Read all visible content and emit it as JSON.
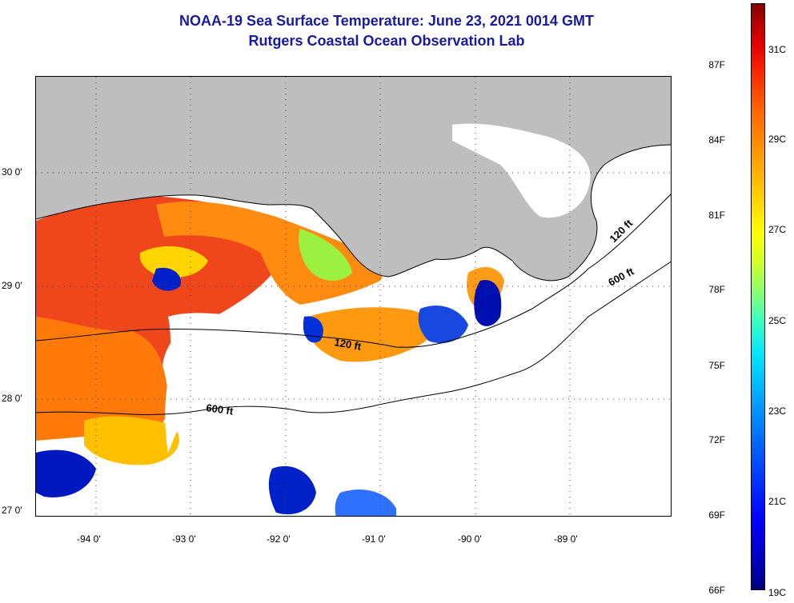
{
  "title": {
    "line1": "NOAA-19 Sea Surface Temperature:  June 23, 2021 0014 GMT",
    "line2": "Rutgers Coastal Ocean Observation Lab"
  },
  "latitude_labels": [
    "30 0'",
    "29 0'",
    "28 0'",
    "27 0'"
  ],
  "longitude_labels": [
    "-94 0'",
    "-93 0'",
    "-92 0'",
    "-91 0'",
    "-90 0'",
    "-89 0'"
  ],
  "contour_labels": [
    "120 ft",
    "600 ft",
    "120 ft",
    "600 ft"
  ],
  "colorbar": {
    "fahrenheit": [
      "87F",
      "84F",
      "81F",
      "78F",
      "75F",
      "72F",
      "69F",
      "66F"
    ],
    "celsius": [
      "31C",
      "29C",
      "27C",
      "25C",
      "23C",
      "21C",
      "19C"
    ],
    "colors": [
      "#00007f",
      "#0000ff",
      "#00a0ff",
      "#00e5ff",
      "#8cff6e",
      "#ffff00",
      "#ff9600",
      "#ff2a00",
      "#800000"
    ]
  },
  "colors": {
    "land": "#bebebe",
    "no_data": "#ffffff",
    "title": "#1a1a9c",
    "warm": "#ff6a00",
    "hot": "#f0341c",
    "cool": "#0020d0"
  }
}
